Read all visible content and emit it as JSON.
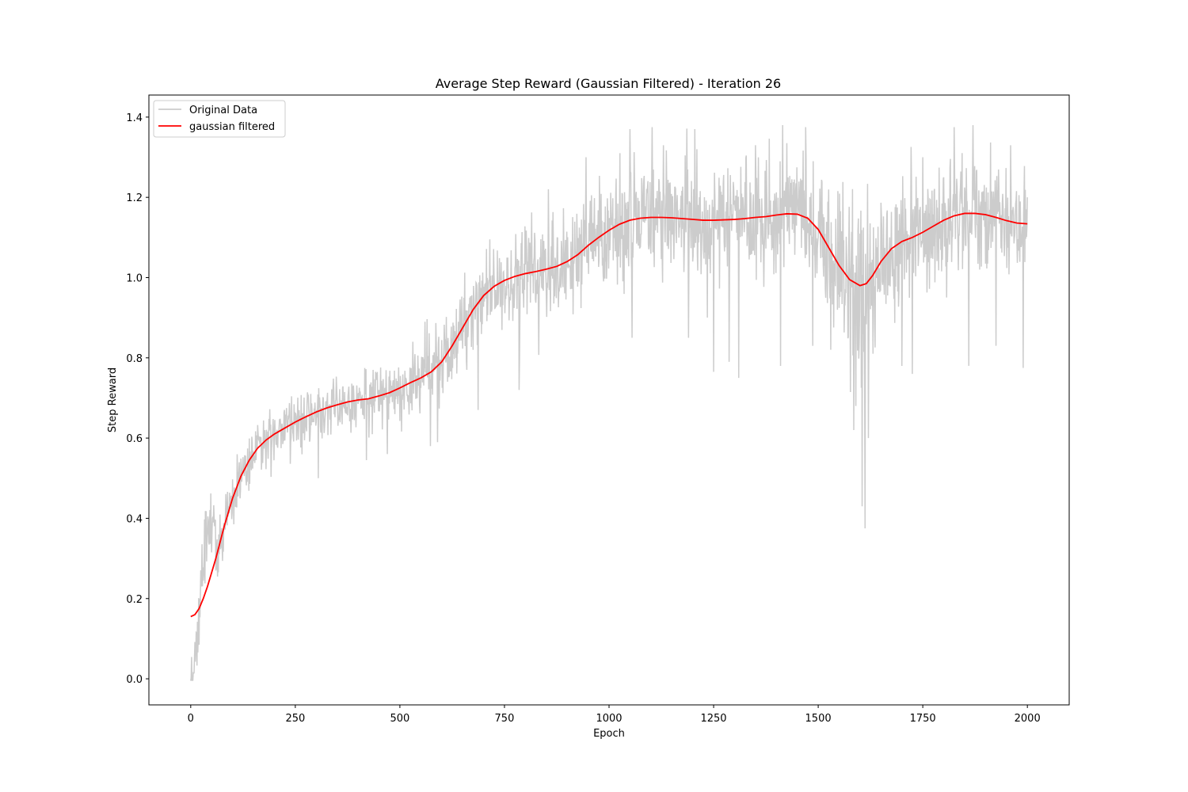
{
  "chart_data": {
    "type": "line",
    "title": "Average Step Reward (Gaussian Filtered) - Iteration 26",
    "xlabel": "Epoch",
    "ylabel": "Step Reward",
    "xlim": [
      -100,
      2100
    ],
    "ylim": [
      -0.065,
      1.455
    ],
    "xticks": [
      0,
      250,
      500,
      750,
      1000,
      1250,
      1500,
      1750,
      2000
    ],
    "xtick_labels": [
      "0",
      "250",
      "500",
      "750",
      "1000",
      "1250",
      "1500",
      "1750",
      "2000"
    ],
    "yticks": [
      0.0,
      0.2,
      0.4,
      0.6,
      0.8,
      1.0,
      1.2,
      1.4
    ],
    "ytick_labels": [
      "0.0",
      "0.2",
      "0.4",
      "0.6",
      "0.8",
      "1.0",
      "1.2",
      "1.4"
    ],
    "grid": false,
    "legend": {
      "placement": "top-left"
    },
    "series": [
      {
        "name": "Original Data",
        "color": "#cccccc",
        "noise": [
          [
            0,
            0.06
          ],
          [
            50,
            0.06
          ],
          [
            100,
            0.04
          ],
          [
            200,
            0.045
          ],
          [
            300,
            0.045
          ],
          [
            450,
            0.045
          ],
          [
            600,
            0.055
          ],
          [
            700,
            0.07
          ],
          [
            800,
            0.075
          ],
          [
            1000,
            0.09
          ],
          [
            1500,
            0.09
          ],
          [
            1550,
            0.11
          ],
          [
            1600,
            0.15
          ],
          [
            1650,
            0.11
          ],
          [
            1700,
            0.1
          ],
          [
            2000,
            0.09
          ]
        ],
        "spikes": [
          {
            "x": 1605,
            "y": 0.43
          },
          {
            "x": 1612,
            "y": 0.375
          },
          {
            "x": 1585,
            "y": 0.62
          },
          {
            "x": 1590,
            "y": 0.68
          },
          {
            "x": 1620,
            "y": 0.6
          },
          {
            "x": 1250,
            "y": 0.765
          },
          {
            "x": 1287,
            "y": 0.79
          },
          {
            "x": 1310,
            "y": 0.75
          },
          {
            "x": 1190,
            "y": 0.85
          },
          {
            "x": 1055,
            "y": 0.85
          },
          {
            "x": 945,
            "y": 0.75
          },
          {
            "x": 1410,
            "y": 0.78
          },
          {
            "x": 1860,
            "y": 0.78
          },
          {
            "x": 1925,
            "y": 0.83
          },
          {
            "x": 1990,
            "y": 0.775
          },
          {
            "x": 1725,
            "y": 0.76
          },
          {
            "x": 1700,
            "y": 0.78
          },
          {
            "x": 1530,
            "y": 0.82
          },
          {
            "x": 1487,
            "y": 0.83
          },
          {
            "x": 1050,
            "y": 1.37
          },
          {
            "x": 1103,
            "y": 1.375
          },
          {
            "x": 1205,
            "y": 1.37
          },
          {
            "x": 1415,
            "y": 1.38
          },
          {
            "x": 1470,
            "y": 1.375
          },
          {
            "x": 1825,
            "y": 1.375
          },
          {
            "x": 1870,
            "y": 1.38
          },
          {
            "x": 855,
            "y": 1.22
          },
          {
            "x": 945,
            "y": 1.3
          },
          {
            "x": 1350,
            "y": 1.33
          },
          {
            "x": 1750,
            "y": 1.3
          },
          {
            "x": 1210,
            "y": 1.32
          },
          {
            "x": 1130,
            "y": 1.33
          },
          {
            "x": 1960,
            "y": 1.33
          },
          {
            "x": 305,
            "y": 0.5
          },
          {
            "x": 420,
            "y": 0.545
          },
          {
            "x": 590,
            "y": 0.59
          },
          {
            "x": 687,
            "y": 0.67
          },
          {
            "x": 785,
            "y": 0.72
          },
          {
            "x": 660,
            "y": 0.77
          },
          {
            "x": 470,
            "y": 0.56
          },
          {
            "x": 436,
            "y": 0.77
          },
          {
            "x": 531,
            "y": 0.84
          },
          {
            "x": 560,
            "y": 0.89
          },
          {
            "x": 573,
            "y": 0.58
          }
        ]
      },
      {
        "name": "gaussian filtered",
        "color": "#ff0000",
        "points": [
          [
            0,
            0.155
          ],
          [
            10,
            0.16
          ],
          [
            20,
            0.175
          ],
          [
            30,
            0.2
          ],
          [
            40,
            0.23
          ],
          [
            50,
            0.265
          ],
          [
            60,
            0.3
          ],
          [
            70,
            0.34
          ],
          [
            80,
            0.38
          ],
          [
            90,
            0.415
          ],
          [
            100,
            0.45
          ],
          [
            120,
            0.505
          ],
          [
            140,
            0.545
          ],
          [
            160,
            0.575
          ],
          [
            180,
            0.595
          ],
          [
            200,
            0.61
          ],
          [
            225,
            0.625
          ],
          [
            250,
            0.64
          ],
          [
            275,
            0.653
          ],
          [
            300,
            0.665
          ],
          [
            325,
            0.675
          ],
          [
            350,
            0.683
          ],
          [
            375,
            0.69
          ],
          [
            400,
            0.695
          ],
          [
            425,
            0.698
          ],
          [
            450,
            0.705
          ],
          [
            475,
            0.713
          ],
          [
            500,
            0.725
          ],
          [
            525,
            0.738
          ],
          [
            550,
            0.75
          ],
          [
            575,
            0.765
          ],
          [
            600,
            0.79
          ],
          [
            625,
            0.83
          ],
          [
            650,
            0.875
          ],
          [
            675,
            0.92
          ],
          [
            700,
            0.955
          ],
          [
            725,
            0.978
          ],
          [
            750,
            0.993
          ],
          [
            775,
            1.003
          ],
          [
            800,
            1.01
          ],
          [
            825,
            1.015
          ],
          [
            850,
            1.021
          ],
          [
            875,
            1.028
          ],
          [
            900,
            1.04
          ],
          [
            925,
            1.057
          ],
          [
            950,
            1.08
          ],
          [
            975,
            1.1
          ],
          [
            1000,
            1.118
          ],
          [
            1025,
            1.133
          ],
          [
            1050,
            1.143
          ],
          [
            1075,
            1.148
          ],
          [
            1100,
            1.15
          ],
          [
            1125,
            1.15
          ],
          [
            1150,
            1.149
          ],
          [
            1175,
            1.147
          ],
          [
            1200,
            1.145
          ],
          [
            1225,
            1.143
          ],
          [
            1250,
            1.143
          ],
          [
            1275,
            1.144
          ],
          [
            1300,
            1.145
          ],
          [
            1325,
            1.147
          ],
          [
            1350,
            1.15
          ],
          [
            1375,
            1.152
          ],
          [
            1400,
            1.156
          ],
          [
            1425,
            1.159
          ],
          [
            1450,
            1.158
          ],
          [
            1475,
            1.148
          ],
          [
            1500,
            1.12
          ],
          [
            1525,
            1.075
          ],
          [
            1550,
            1.03
          ],
          [
            1575,
            0.995
          ],
          [
            1600,
            0.98
          ],
          [
            1615,
            0.985
          ],
          [
            1630,
            1.005
          ],
          [
            1650,
            1.04
          ],
          [
            1675,
            1.072
          ],
          [
            1700,
            1.09
          ],
          [
            1725,
            1.1
          ],
          [
            1750,
            1.113
          ],
          [
            1775,
            1.128
          ],
          [
            1800,
            1.143
          ],
          [
            1825,
            1.154
          ],
          [
            1850,
            1.16
          ],
          [
            1875,
            1.16
          ],
          [
            1900,
            1.157
          ],
          [
            1925,
            1.15
          ],
          [
            1950,
            1.142
          ],
          [
            1975,
            1.136
          ],
          [
            2000,
            1.134
          ]
        ]
      }
    ]
  }
}
